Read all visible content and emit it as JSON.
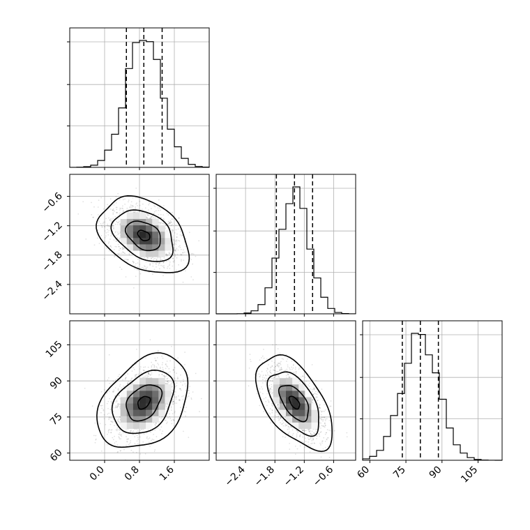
{
  "chart_data": {
    "type": "corner",
    "parameters": 3,
    "variables": [
      {
        "ticks": [
          0.0,
          0.8,
          1.6
        ],
        "tick_labels": [
          "0.0",
          "0.8",
          "1.6"
        ],
        "range": [
          -0.8,
          2.4
        ],
        "mean": 0.9,
        "sd": 0.4,
        "quantiles": [
          0.5,
          0.9,
          1.32
        ]
      },
      {
        "ticks": [
          -2.4,
          -1.8,
          -1.2,
          -0.6
        ],
        "tick_labels": [
          "−2.4",
          "−1.8",
          "−1.2",
          "−0.6"
        ],
        "range": [
          -3.0,
          -0.15
        ],
        "mean": -1.4,
        "sd": 0.3,
        "quantiles": [
          -1.77,
          -1.4,
          -1.03
        ]
      },
      {
        "ticks": [
          60,
          75,
          90,
          105
        ],
        "tick_labels": [
          "60",
          "75",
          "90",
          "105"
        ],
        "range": [
          57,
          115
        ],
        "mean": 81,
        "sd": 7.5,
        "quantiles": [
          73.5,
          81,
          88.5
        ]
      }
    ],
    "correlations": {
      "0-1": -0.35,
      "0-2": 0.35,
      "1-2": -0.55
    },
    "grid": true,
    "quantile_lines": "dashed"
  }
}
